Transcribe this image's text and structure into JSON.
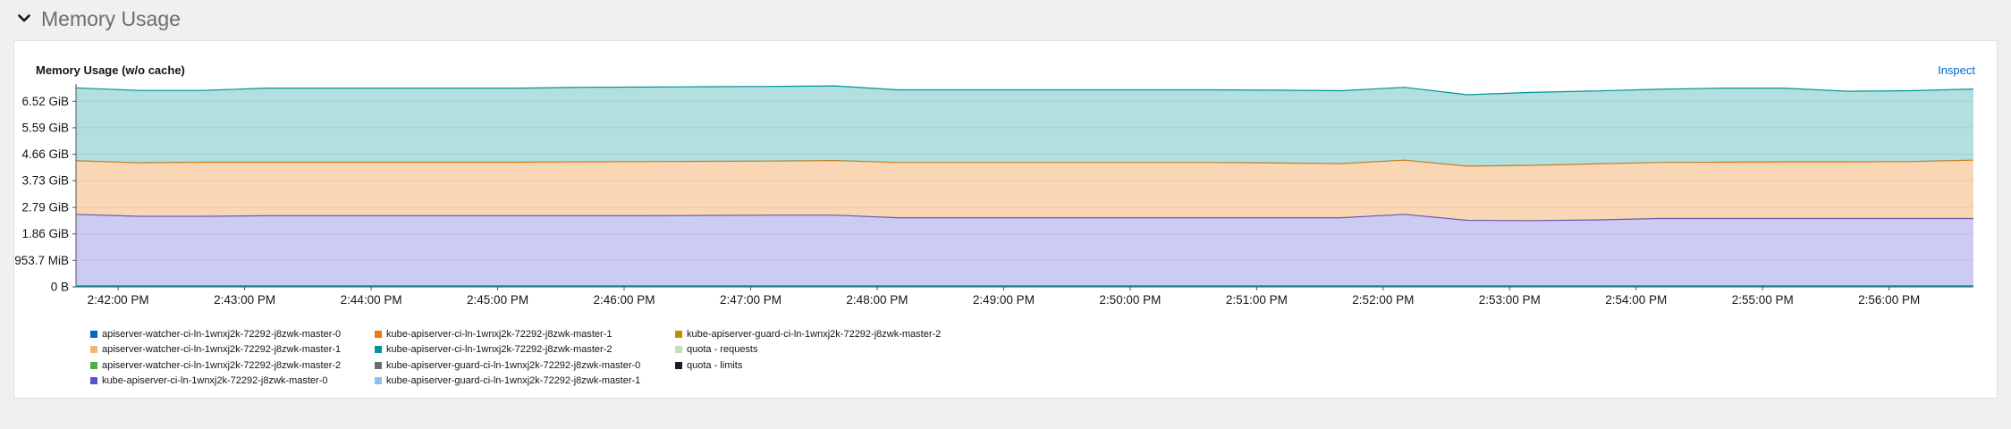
{
  "section": {
    "title": "Memory Usage",
    "chevron_icon": "chevron-down-icon"
  },
  "card": {
    "title": "Memory Usage (w/o cache)",
    "inspect_label": "Inspect"
  },
  "colors": {
    "grid": "#ececec",
    "axis": "#4f5255",
    "link": "#0066cc"
  },
  "chart_data": {
    "type": "area",
    "stacked": true,
    "title": "Memory Usage (w/o cache)",
    "y_unit": "GiB",
    "ylim": [
      0,
      7.0
    ],
    "yticks": [
      {
        "value": 0,
        "label": "0 B"
      },
      {
        "value": 0.9314,
        "label": "953.7 MiB"
      },
      {
        "value": 1.86,
        "label": "1.86 GiB"
      },
      {
        "value": 2.79,
        "label": "2.79 GiB"
      },
      {
        "value": 3.73,
        "label": "3.73 GiB"
      },
      {
        "value": 4.66,
        "label": "4.66 GiB"
      },
      {
        "value": 5.59,
        "label": "5.59 GiB"
      },
      {
        "value": 6.52,
        "label": "6.52 GiB"
      }
    ],
    "x_unit": "time",
    "xlim": [
      "2:41:40 PM",
      "2:56:40 PM"
    ],
    "xtick_labels": [
      "2:42:00 PM",
      "2:43:00 PM",
      "2:44:00 PM",
      "2:45:00 PM",
      "2:46:00 PM",
      "2:47:00 PM",
      "2:48:00 PM",
      "2:49:00 PM",
      "2:50:00 PM",
      "2:51:00 PM",
      "2:52:00 PM",
      "2:53:00 PM",
      "2:54:00 PM",
      "2:55:00 PM",
      "2:56:00 PM"
    ],
    "x": [
      "2:41:40 PM",
      "2:42:10 PM",
      "2:42:40 PM",
      "2:43:10 PM",
      "2:43:40 PM",
      "2:44:10 PM",
      "2:44:40 PM",
      "2:45:10 PM",
      "2:45:40 PM",
      "2:46:10 PM",
      "2:46:40 PM",
      "2:47:10 PM",
      "2:47:40 PM",
      "2:48:10 PM",
      "2:48:40 PM",
      "2:49:10 PM",
      "2:49:40 PM",
      "2:50:10 PM",
      "2:50:40 PM",
      "2:51:10 PM",
      "2:51:40 PM",
      "2:52:10 PM",
      "2:52:40 PM",
      "2:53:10 PM",
      "2:53:40 PM",
      "2:54:10 PM",
      "2:54:40 PM",
      "2:55:10 PM",
      "2:55:40 PM",
      "2:56:10 PM",
      "2:56:40 PM"
    ],
    "series": [
      {
        "name": "kube-apiserver-ci-ln-1wnxj2k-72292-j8zwk-master-0",
        "color": "#5752d1",
        "values": [
          2.55,
          2.48,
          2.48,
          2.5,
          2.5,
          2.5,
          2.5,
          2.5,
          2.5,
          2.5,
          2.51,
          2.52,
          2.52,
          2.43,
          2.43,
          2.43,
          2.43,
          2.43,
          2.43,
          2.43,
          2.43,
          2.55,
          2.34,
          2.33,
          2.35,
          2.4,
          2.4,
          2.4,
          2.4,
          2.4,
          2.4
        ]
      },
      {
        "name": "kube-apiserver-ci-ln-1wnxj2k-72292-j8zwk-master-1",
        "color": "#ec7a08",
        "values": [
          1.88,
          1.88,
          1.9,
          1.88,
          1.88,
          1.88,
          1.88,
          1.88,
          1.89,
          1.9,
          1.9,
          1.9,
          1.92,
          1.94,
          1.94,
          1.94,
          1.94,
          1.94,
          1.94,
          1.92,
          1.9,
          1.9,
          1.9,
          1.94,
          1.97,
          1.97,
          1.98,
          1.99,
          1.99,
          2.0,
          2.05
        ]
      },
      {
        "name": "kube-apiserver-ci-ln-1wnxj2k-72292-j8zwk-master-2",
        "color": "#009596",
        "values": [
          2.56,
          2.54,
          2.52,
          2.6,
          2.6,
          2.6,
          2.6,
          2.6,
          2.62,
          2.62,
          2.62,
          2.62,
          2.62,
          2.55,
          2.55,
          2.55,
          2.55,
          2.55,
          2.55,
          2.56,
          2.56,
          2.56,
          2.51,
          2.56,
          2.56,
          2.57,
          2.6,
          2.59,
          2.48,
          2.49,
          2.5
        ]
      }
    ],
    "legend_position": "bottom-left",
    "legend": [
      {
        "label": "apiserver-watcher-ci-ln-1wnxj2k-72292-j8zwk-master-0",
        "color": "#06c"
      },
      {
        "label": "apiserver-watcher-ci-ln-1wnxj2k-72292-j8zwk-master-1",
        "color": "#f4b678"
      },
      {
        "label": "apiserver-watcher-ci-ln-1wnxj2k-72292-j8zwk-master-2",
        "color": "#4cb140"
      },
      {
        "label": "kube-apiserver-ci-ln-1wnxj2k-72292-j8zwk-master-0",
        "color": "#5752d1"
      },
      {
        "label": "kube-apiserver-ci-ln-1wnxj2k-72292-j8zwk-master-1",
        "color": "#ec7a08"
      },
      {
        "label": "kube-apiserver-ci-ln-1wnxj2k-72292-j8zwk-master-2",
        "color": "#009596"
      },
      {
        "label": "kube-apiserver-guard-ci-ln-1wnxj2k-72292-j8zwk-master-0",
        "color": "#6a6e73"
      },
      {
        "label": "kube-apiserver-guard-ci-ln-1wnxj2k-72292-j8zwk-master-1",
        "color": "#8bc1f7"
      },
      {
        "label": "kube-apiserver-guard-ci-ln-1wnxj2k-72292-j8zwk-master-2",
        "color": "#c58c00"
      },
      {
        "label": "quota - requests",
        "color": "#bde2b9"
      },
      {
        "label": "quota - limits",
        "color": "#1b1d21"
      }
    ]
  }
}
